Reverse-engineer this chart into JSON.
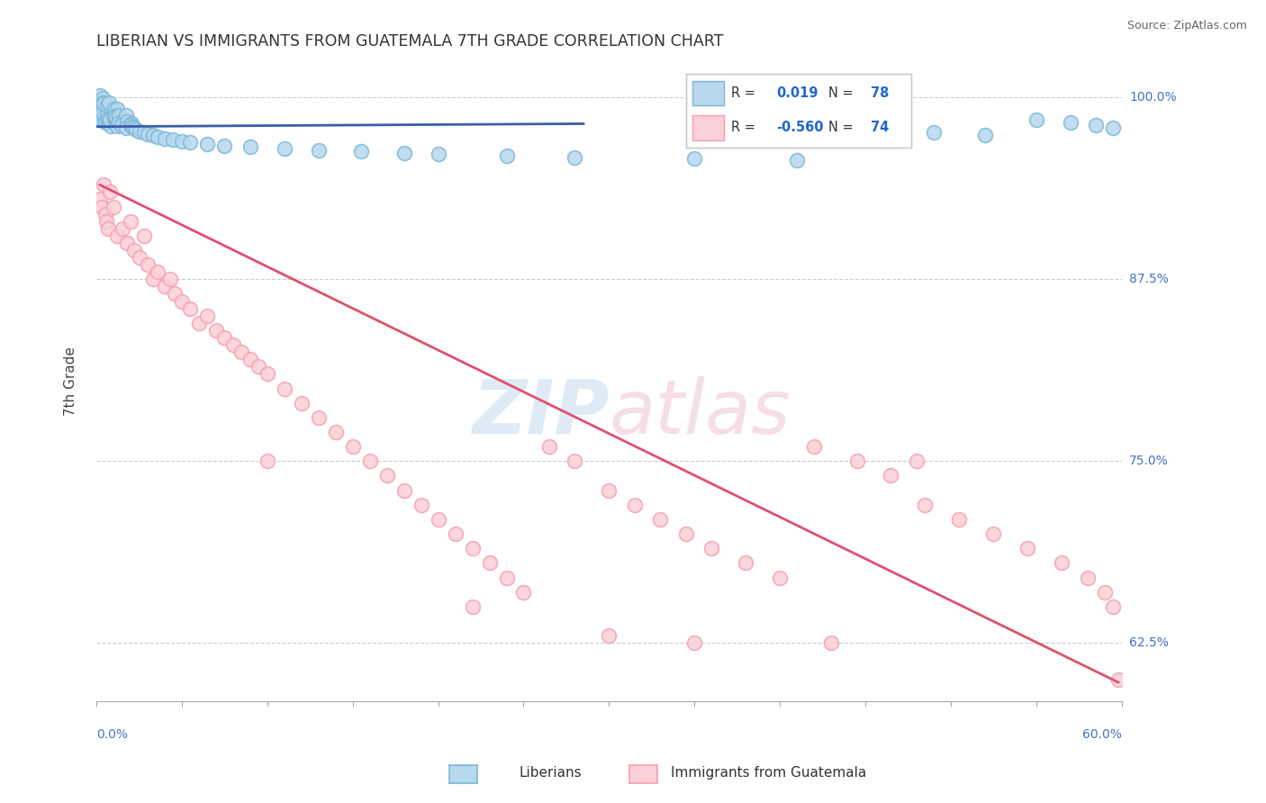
{
  "title": "LIBERIAN VS IMMIGRANTS FROM GUATEMALA 7TH GRADE CORRELATION CHART",
  "source": "Source: ZipAtlas.com",
  "ylabel": "7th Grade",
  "xlim": [
    0.0,
    0.6
  ],
  "ylim": [
    0.585,
    1.025
  ],
  "blue_color": "#7ab8d9",
  "blue_face": "#b8d8ed",
  "pink_color": "#f4a0b0",
  "pink_face": "#fbd0d8",
  "trend_blue": "#3a5fa8",
  "trend_pink": "#e05070",
  "blue_scatter_x": [
    0.001,
    0.001,
    0.002,
    0.002,
    0.002,
    0.003,
    0.003,
    0.003,
    0.003,
    0.004,
    0.004,
    0.004,
    0.004,
    0.005,
    0.005,
    0.005,
    0.005,
    0.006,
    0.006,
    0.006,
    0.006,
    0.007,
    0.007,
    0.007,
    0.008,
    0.008,
    0.008,
    0.009,
    0.009,
    0.01,
    0.01,
    0.01,
    0.011,
    0.011,
    0.012,
    0.012,
    0.013,
    0.013,
    0.014,
    0.015,
    0.015,
    0.016,
    0.017,
    0.018,
    0.019,
    0.02,
    0.021,
    0.022,
    0.023,
    0.025,
    0.028,
    0.03,
    0.033,
    0.036,
    0.04,
    0.045,
    0.05,
    0.055,
    0.065,
    0.075,
    0.09,
    0.11,
    0.13,
    0.155,
    0.18,
    0.2,
    0.24,
    0.28,
    0.35,
    0.41,
    0.43,
    0.46,
    0.49,
    0.52,
    0.55,
    0.57,
    0.585,
    0.595
  ],
  "blue_scatter_y": [
    0.998,
    0.994,
    0.997,
    0.993,
    0.989,
    0.996,
    0.992,
    0.988,
    0.984,
    0.997,
    0.993,
    0.989,
    0.985,
    0.996,
    0.992,
    0.988,
    0.983,
    0.995,
    0.991,
    0.987,
    0.982,
    0.994,
    0.99,
    0.986,
    0.993,
    0.989,
    0.985,
    0.992,
    0.988,
    0.991,
    0.987,
    0.983,
    0.99,
    0.986,
    0.989,
    0.985,
    0.988,
    0.984,
    0.987,
    0.99,
    0.986,
    0.985,
    0.984,
    0.983,
    0.982,
    0.981,
    0.98,
    0.979,
    0.978,
    0.977,
    0.976,
    0.975,
    0.974,
    0.973,
    0.972,
    0.971,
    0.97,
    0.969,
    0.968,
    0.967,
    0.966,
    0.965,
    0.964,
    0.963,
    0.962,
    0.961,
    0.96,
    0.959,
    0.958,
    0.957,
    0.98,
    0.978,
    0.976,
    0.974,
    0.985,
    0.983,
    0.981,
    0.979
  ],
  "pink_scatter_x": [
    0.002,
    0.003,
    0.004,
    0.005,
    0.006,
    0.007,
    0.008,
    0.01,
    0.012,
    0.015,
    0.018,
    0.02,
    0.022,
    0.025,
    0.028,
    0.03,
    0.033,
    0.036,
    0.04,
    0.043,
    0.046,
    0.05,
    0.055,
    0.06,
    0.065,
    0.07,
    0.075,
    0.08,
    0.085,
    0.09,
    0.095,
    0.1,
    0.11,
    0.12,
    0.13,
    0.14,
    0.15,
    0.16,
    0.17,
    0.18,
    0.19,
    0.2,
    0.21,
    0.22,
    0.23,
    0.24,
    0.25,
    0.265,
    0.28,
    0.3,
    0.315,
    0.33,
    0.345,
    0.36,
    0.38,
    0.4,
    0.42,
    0.445,
    0.465,
    0.485,
    0.505,
    0.525,
    0.545,
    0.565,
    0.58,
    0.59,
    0.595,
    0.598,
    0.35,
    0.43,
    0.48,
    0.3,
    0.22,
    0.1
  ],
  "pink_scatter_y": [
    0.93,
    0.925,
    0.94,
    0.92,
    0.915,
    0.91,
    0.935,
    0.925,
    0.905,
    0.91,
    0.9,
    0.915,
    0.895,
    0.89,
    0.905,
    0.885,
    0.875,
    0.88,
    0.87,
    0.875,
    0.865,
    0.86,
    0.855,
    0.845,
    0.85,
    0.84,
    0.835,
    0.83,
    0.825,
    0.82,
    0.815,
    0.81,
    0.8,
    0.79,
    0.78,
    0.77,
    0.76,
    0.75,
    0.74,
    0.73,
    0.72,
    0.71,
    0.7,
    0.69,
    0.68,
    0.67,
    0.66,
    0.76,
    0.75,
    0.73,
    0.72,
    0.71,
    0.7,
    0.69,
    0.68,
    0.67,
    0.76,
    0.75,
    0.74,
    0.72,
    0.71,
    0.7,
    0.69,
    0.68,
    0.67,
    0.66,
    0.65,
    0.6,
    0.625,
    0.625,
    0.75,
    0.63,
    0.65,
    0.75
  ],
  "blue_trend_x": [
    0.0,
    0.285
  ],
  "blue_trend_y": [
    0.98,
    0.982
  ],
  "pink_trend_x": [
    0.002,
    0.598
  ],
  "pink_trend_y": [
    0.94,
    0.598
  ]
}
